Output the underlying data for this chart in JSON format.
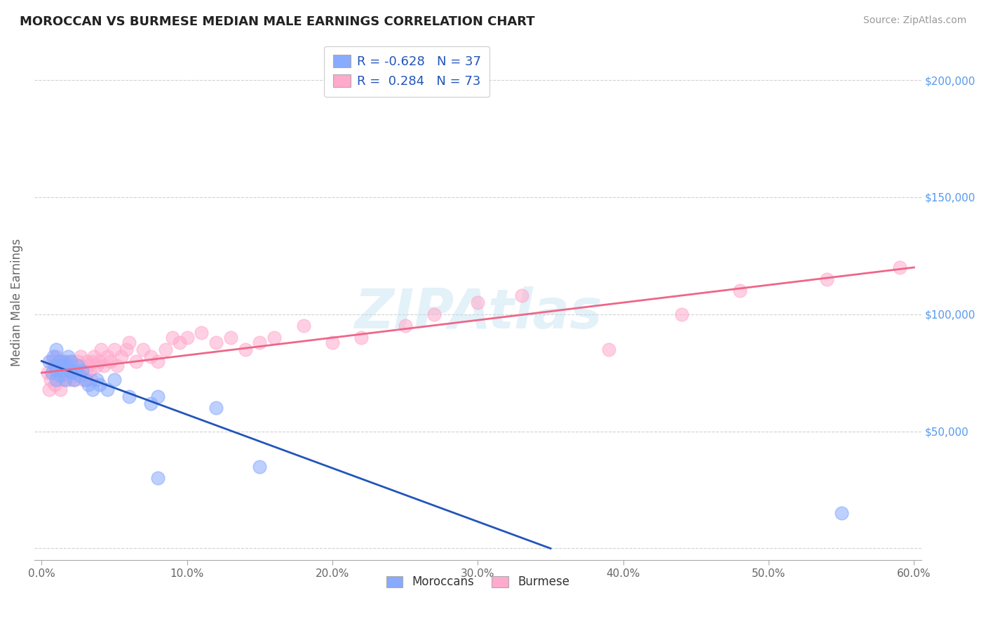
{
  "title": "MOROCCAN VS BURMESE MEDIAN MALE EARNINGS CORRELATION CHART",
  "source": "Source: ZipAtlas.com",
  "ylabel": "Median Male Earnings",
  "xlim": [
    -0.005,
    0.605
  ],
  "ylim": [
    -5000,
    215000
  ],
  "yticks": [
    0,
    50000,
    100000,
    150000,
    200000
  ],
  "ytick_labels": [
    "",
    "$50,000",
    "$100,000",
    "$150,000",
    "$200,000"
  ],
  "xtick_labels": [
    "0.0%",
    "10.0%",
    "20.0%",
    "30.0%",
    "40.0%",
    "50.0%",
    "60.0%"
  ],
  "xticks": [
    0.0,
    0.1,
    0.2,
    0.3,
    0.4,
    0.5,
    0.6
  ],
  "moroccan_R": -0.628,
  "moroccan_N": 37,
  "burmese_R": 0.284,
  "burmese_N": 73,
  "moroccan_color": "#88aaff",
  "burmese_color": "#ffaacc",
  "moroccan_line_color": "#2255bb",
  "burmese_line_color": "#ee6688",
  "background_color": "#ffffff",
  "grid_color": "#cccccc",
  "watermark": "ZIPAtlas",
  "watermark_color": "#bbddee",
  "title_color": "#222222",
  "axis_label_color": "#666666",
  "tick_label_color_right": "#5599ee",
  "legend_R_color": "#2255bb",
  "moroccan_x": [
    0.005,
    0.007,
    0.008,
    0.009,
    0.01,
    0.01,
    0.01,
    0.012,
    0.013,
    0.014,
    0.015,
    0.015,
    0.016,
    0.017,
    0.018,
    0.019,
    0.02,
    0.021,
    0.022,
    0.023,
    0.025,
    0.026,
    0.028,
    0.03,
    0.032,
    0.035,
    0.038,
    0.04,
    0.045,
    0.05,
    0.06,
    0.075,
    0.08,
    0.12,
    0.15,
    0.08,
    0.55
  ],
  "moroccan_y": [
    80000,
    75000,
    82000,
    78000,
    76000,
    85000,
    72000,
    80000,
    74000,
    78000,
    80000,
    76000,
    72000,
    78000,
    82000,
    76000,
    80000,
    75000,
    72000,
    76000,
    78000,
    74000,
    76000,
    72000,
    70000,
    68000,
    72000,
    70000,
    68000,
    72000,
    65000,
    62000,
    65000,
    60000,
    35000,
    30000,
    15000
  ],
  "burmese_x": [
    0.004,
    0.005,
    0.006,
    0.007,
    0.008,
    0.009,
    0.01,
    0.01,
    0.011,
    0.012,
    0.013,
    0.013,
    0.014,
    0.015,
    0.015,
    0.016,
    0.017,
    0.018,
    0.019,
    0.02,
    0.021,
    0.022,
    0.023,
    0.024,
    0.025,
    0.026,
    0.027,
    0.028,
    0.029,
    0.03,
    0.031,
    0.032,
    0.033,
    0.034,
    0.035,
    0.036,
    0.038,
    0.04,
    0.041,
    0.043,
    0.045,
    0.047,
    0.05,
    0.052,
    0.055,
    0.058,
    0.06,
    0.065,
    0.07,
    0.075,
    0.08,
    0.085,
    0.09,
    0.095,
    0.1,
    0.11,
    0.12,
    0.13,
    0.14,
    0.15,
    0.16,
    0.18,
    0.2,
    0.22,
    0.25,
    0.27,
    0.3,
    0.33,
    0.39,
    0.44,
    0.48,
    0.54,
    0.59
  ],
  "burmese_y": [
    75000,
    68000,
    72000,
    80000,
    76000,
    70000,
    78000,
    82000,
    75000,
    72000,
    80000,
    68000,
    75000,
    80000,
    72000,
    76000,
    80000,
    78000,
    72000,
    76000,
    80000,
    75000,
    72000,
    78000,
    80000,
    76000,
    82000,
    78000,
    72000,
    75000,
    80000,
    78000,
    76000,
    72000,
    80000,
    82000,
    78000,
    80000,
    85000,
    78000,
    82000,
    80000,
    85000,
    78000,
    82000,
    85000,
    88000,
    80000,
    85000,
    82000,
    80000,
    85000,
    90000,
    88000,
    90000,
    92000,
    88000,
    90000,
    85000,
    88000,
    90000,
    95000,
    88000,
    90000,
    95000,
    100000,
    105000,
    108000,
    85000,
    100000,
    110000,
    115000,
    120000
  ]
}
